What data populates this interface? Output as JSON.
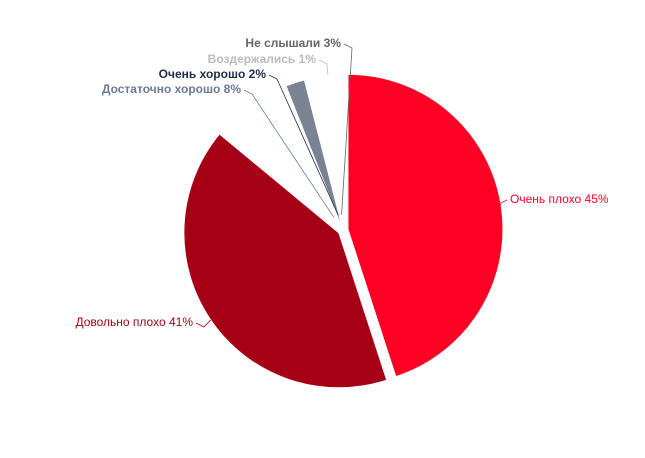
{
  "chart_data": {
    "type": "pie",
    "categories": [
      "Очень плохо",
      "Довольно плохо",
      "Достаточно хорошо",
      "Очень хорошо",
      "Воздержались",
      "Не слышали"
    ],
    "values": [
      45,
      41,
      8,
      2,
      1,
      3
    ],
    "value_labels": [
      "45%",
      "41%",
      "8%",
      "2%",
      "1%",
      "3%"
    ],
    "colors": [
      "#ff0025",
      "#a50016",
      "#ffffff",
      "#7a8394",
      "#ffffff",
      "#ffffff"
    ],
    "label_colors": [
      "#ff0025",
      "#a50016",
      "#6b7b93",
      "#1c2b4a",
      "#bbbbbb",
      "#666666"
    ]
  }
}
